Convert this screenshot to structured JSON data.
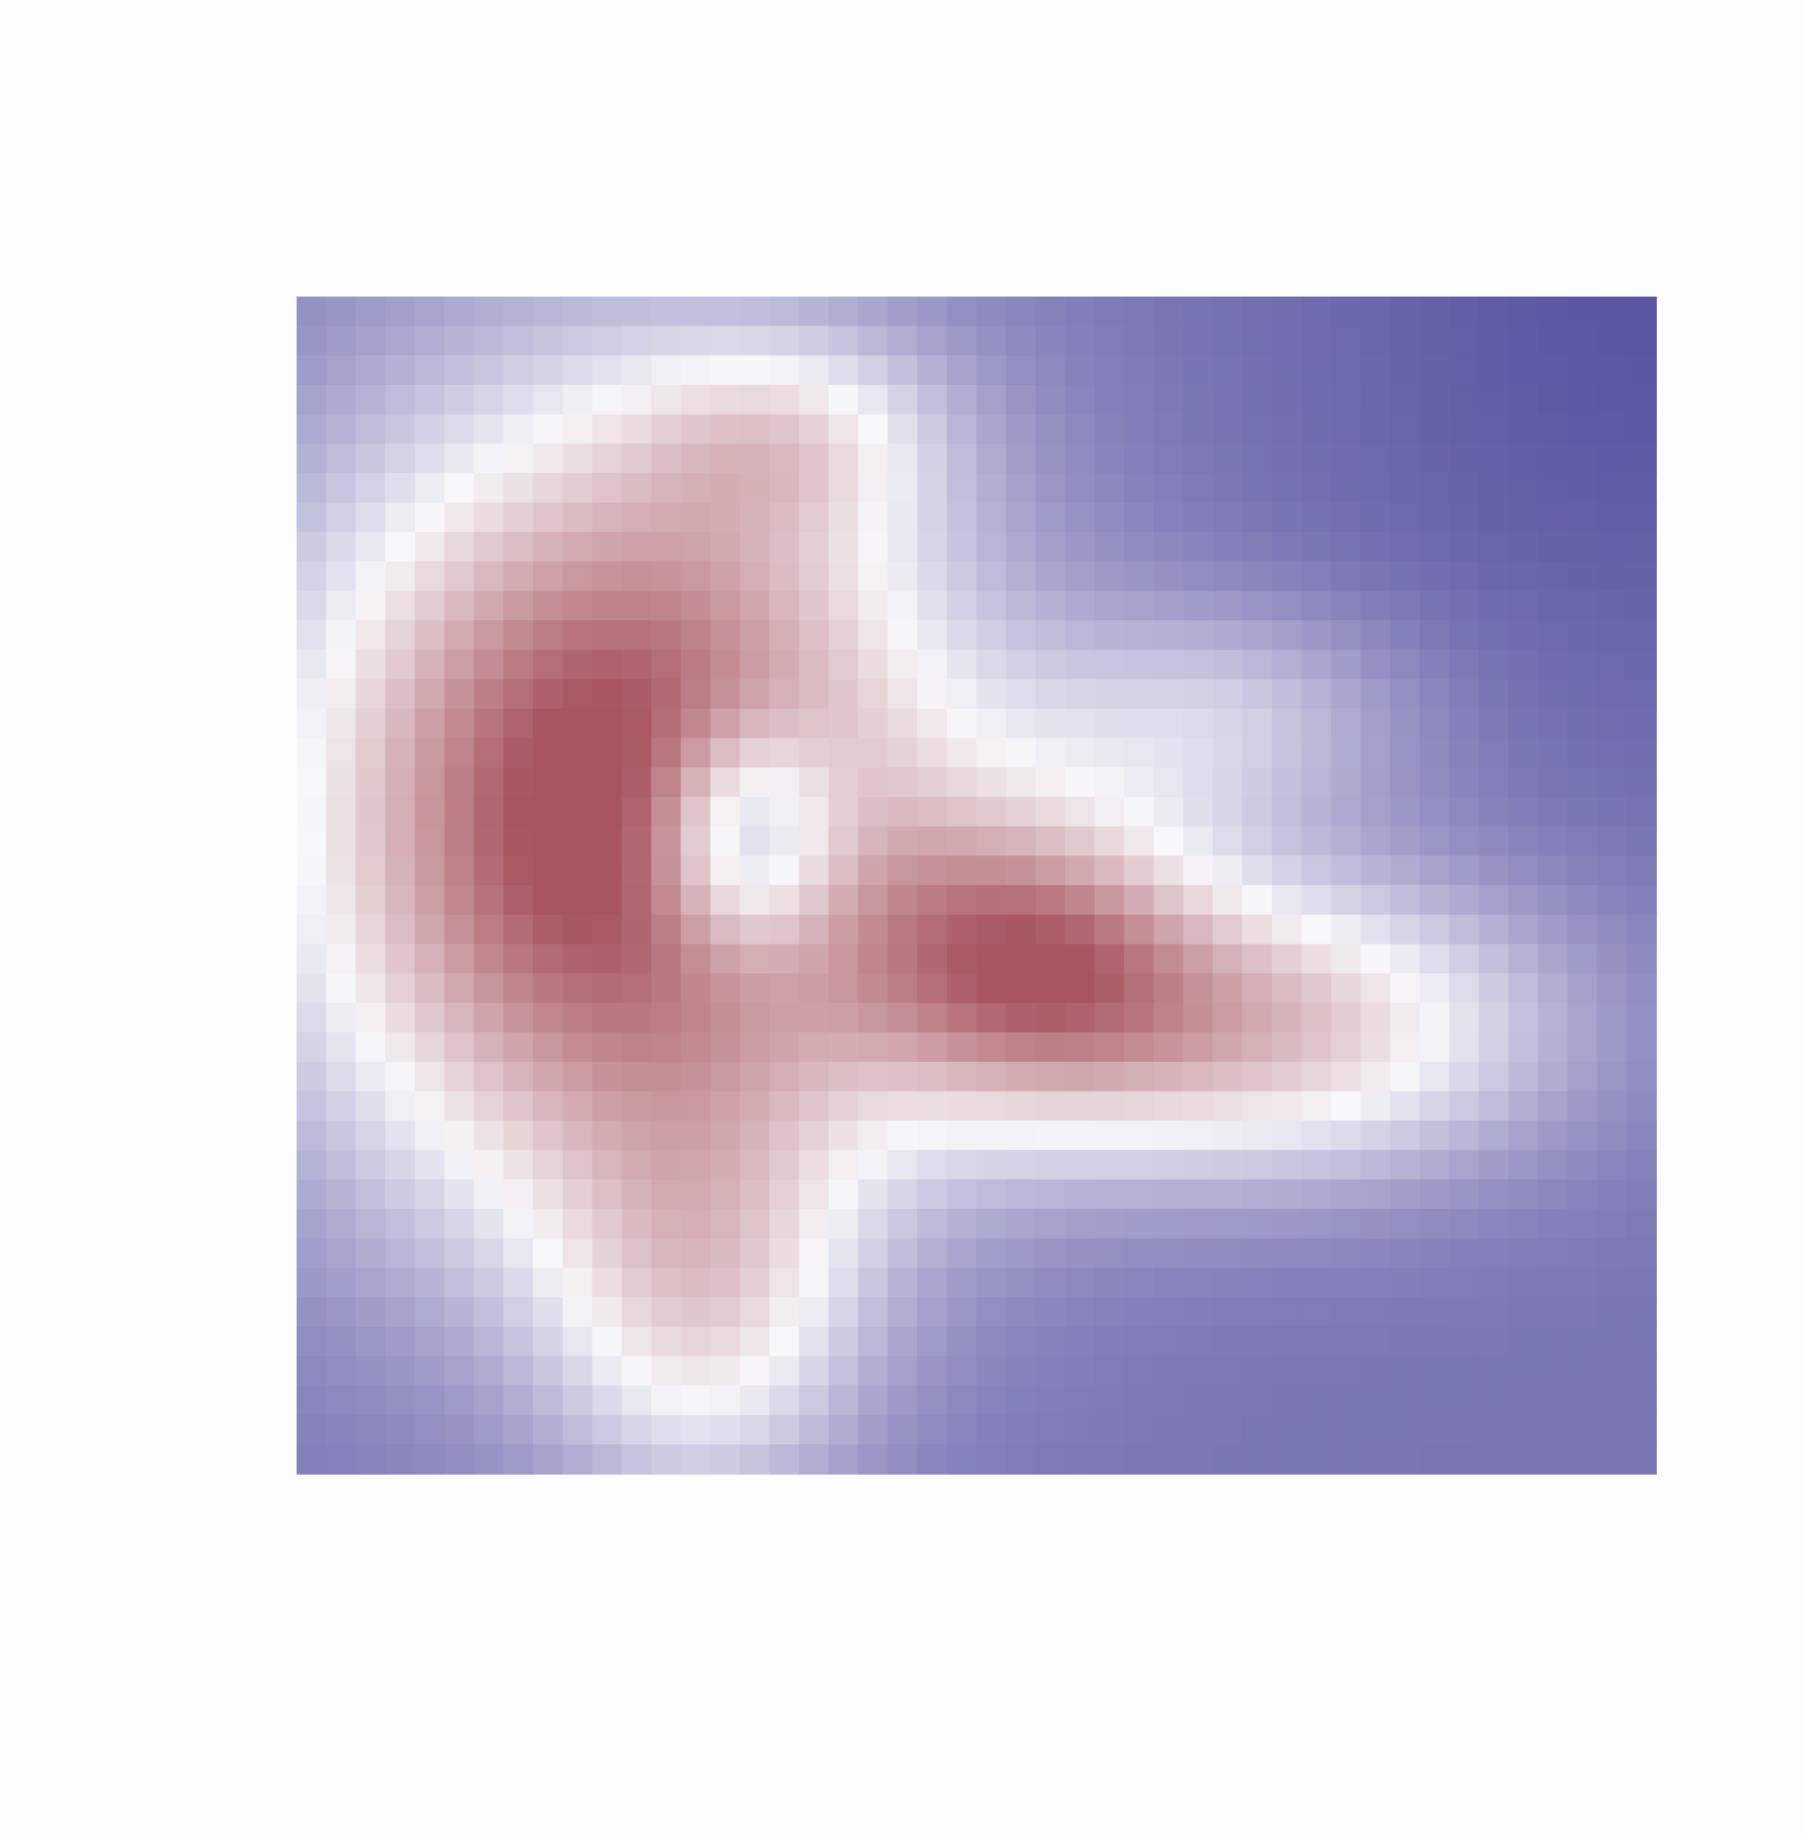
{
  "chart_data": {
    "type": "heatmap",
    "title": "",
    "xlabel": "",
    "ylabel": "",
    "legend": "none",
    "grid": false,
    "axes_visible": false,
    "colormap": {
      "low": "#5a56a3",
      "mid": "#f8f8fa",
      "high": "#a8555f",
      "range": [
        0,
        1
      ]
    },
    "peaks": [
      {
        "name": "main-peak",
        "x": 0.24,
        "y": 0.44,
        "amplitude": 1.0,
        "sx": 0.17,
        "sy": 0.24
      },
      {
        "name": "central-dip",
        "x": 0.33,
        "y": 0.46,
        "amplitude": -0.55,
        "sx": 0.05,
        "sy": 0.07
      },
      {
        "name": "secondary-peak",
        "x": 0.54,
        "y": 0.56,
        "amplitude": 0.55,
        "sx": 0.09,
        "sy": 0.09
      },
      {
        "name": "right-plateau",
        "x": 0.72,
        "y": 0.62,
        "amplitude": 0.55,
        "sx": 0.14,
        "sy": 0.09
      },
      {
        "name": "bottom-ridge",
        "x": 0.3,
        "y": 0.86,
        "amplitude": 0.35,
        "sx": 0.08,
        "sy": 0.12
      },
      {
        "name": "upper-shoulder",
        "x": 0.36,
        "y": 0.12,
        "amplitude": 0.25,
        "sx": 0.08,
        "sy": 0.06
      },
      {
        "name": "right-mid",
        "x": 0.68,
        "y": 0.36,
        "amplitude": 0.25,
        "sx": 0.1,
        "sy": 0.07
      }
    ],
    "baseline": 0.1,
    "corner_low": {
      "x": 1.0,
      "y": 0.0,
      "amplitude": -0.1,
      "sx": 0.18,
      "sy": 0.25
    },
    "grid_resolution": [
      46,
      40
    ]
  }
}
